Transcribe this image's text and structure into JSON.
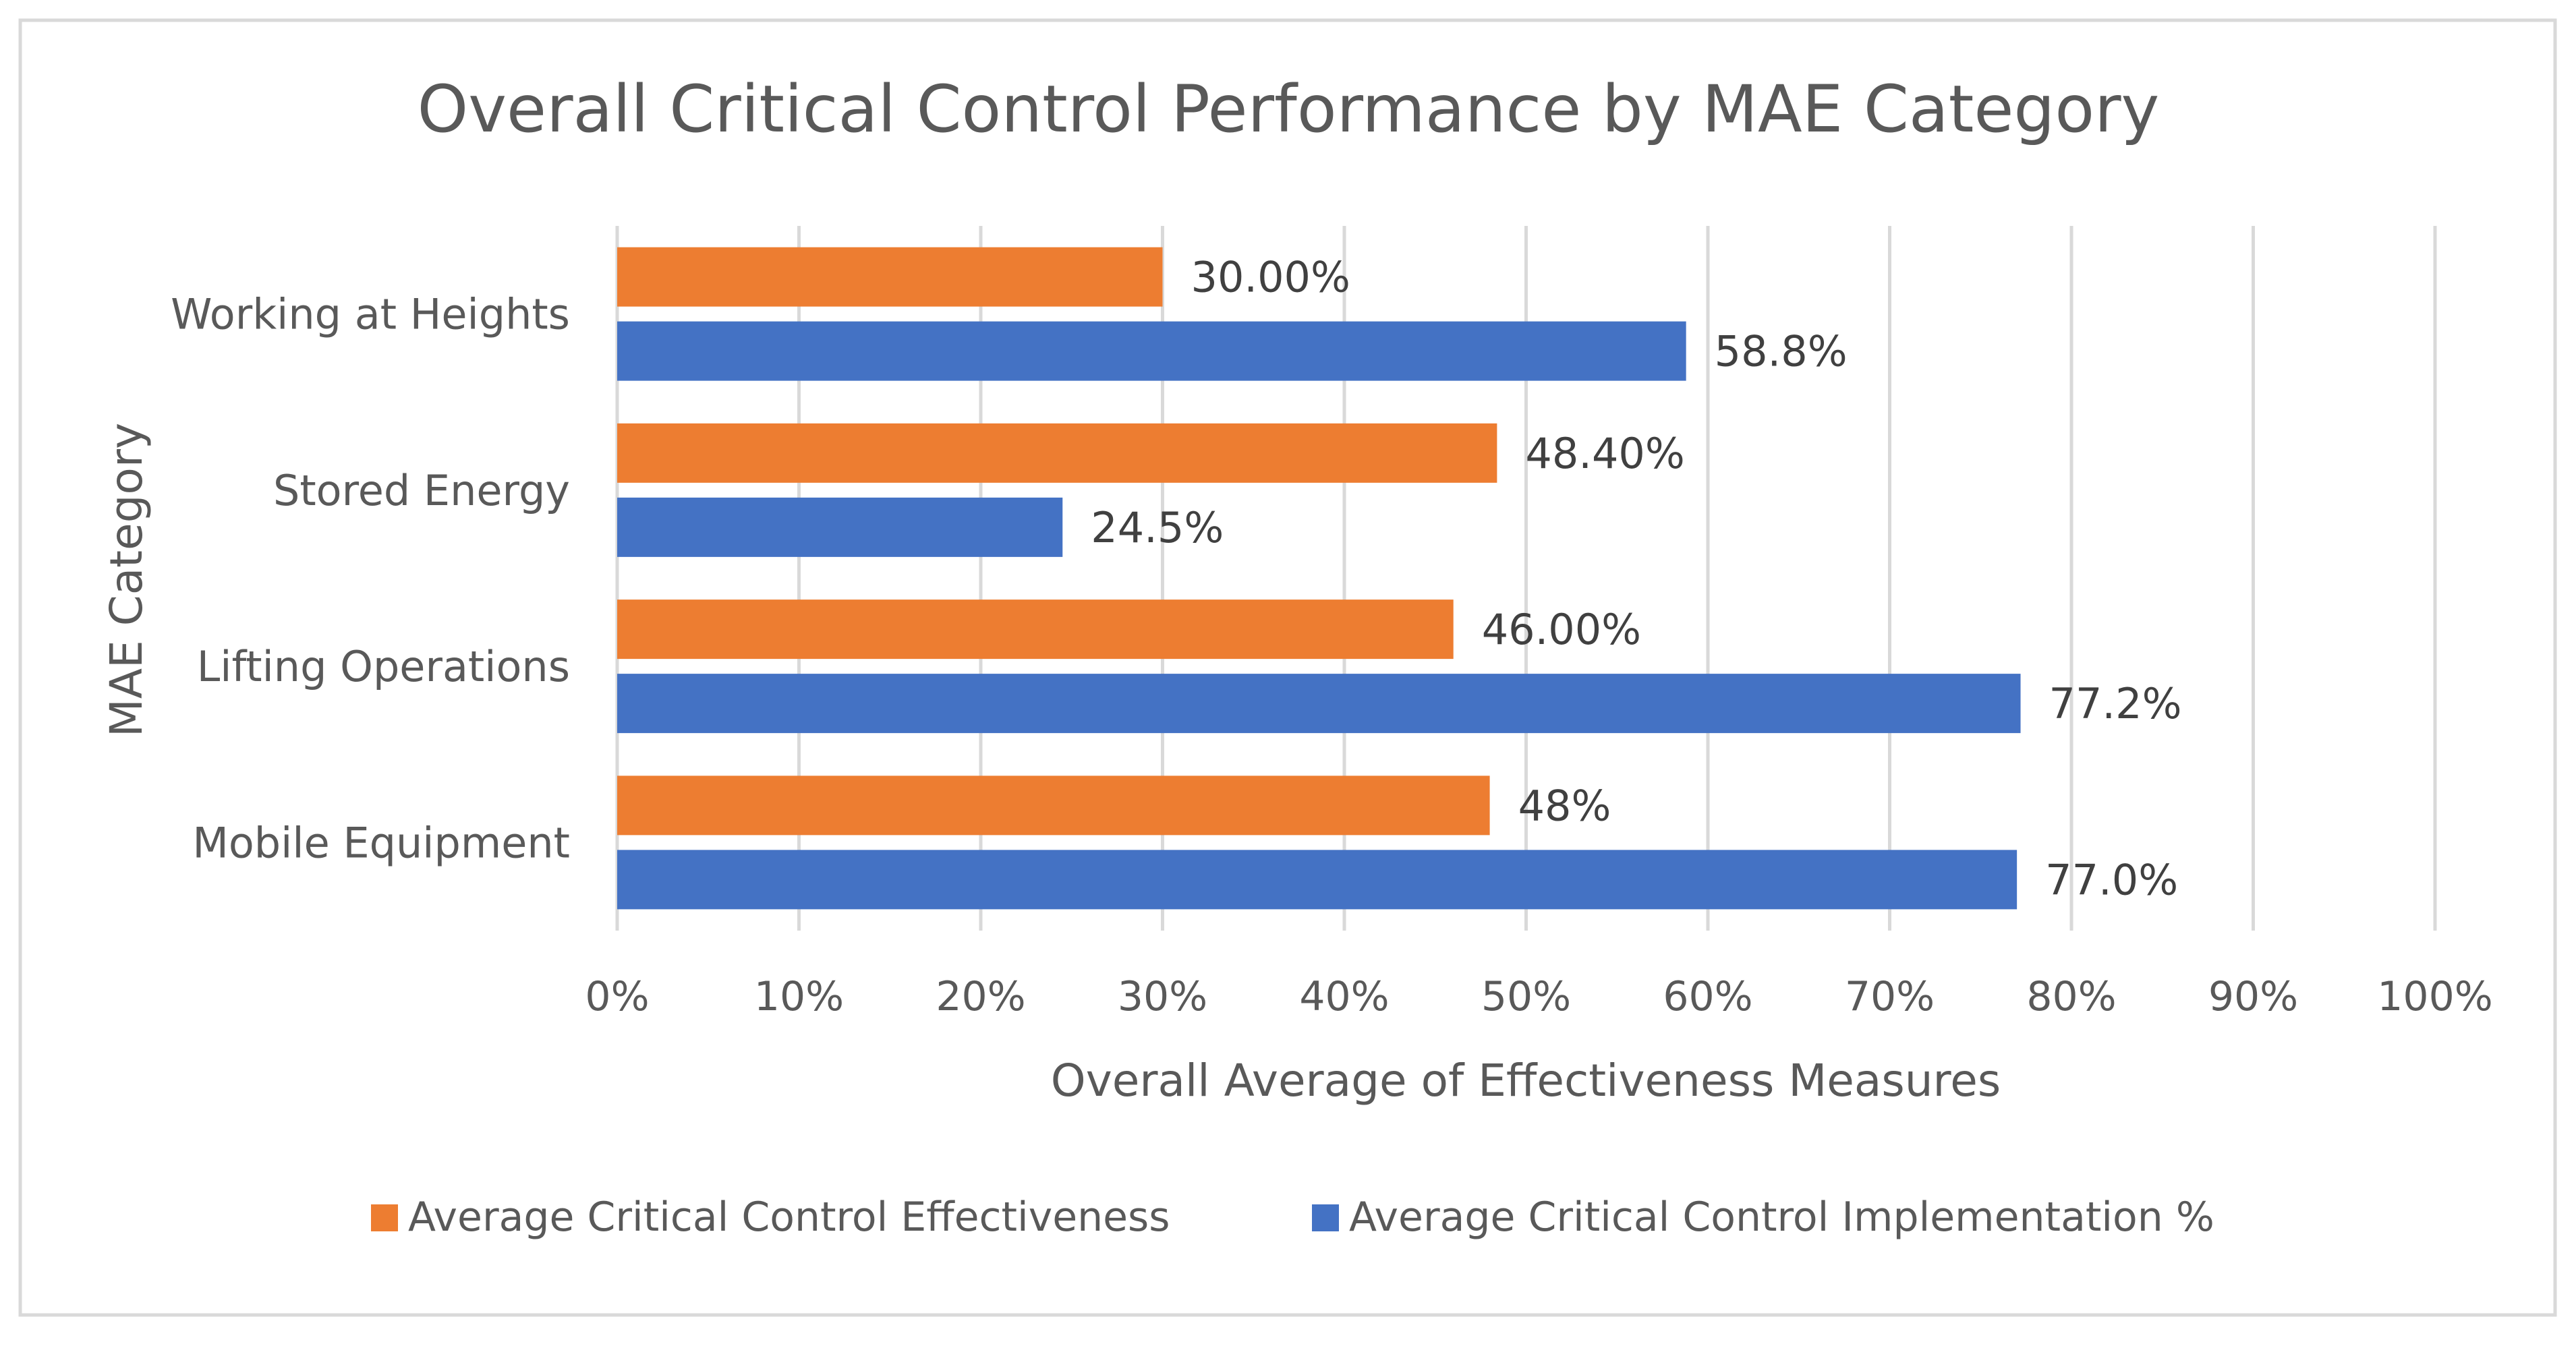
{
  "chart_data": {
    "type": "bar",
    "orientation": "horizontal",
    "title": "Overall Critical Control Performance by MAE Category",
    "xlabel": "Overall Average of Effectiveness Measures",
    "ylabel": "MAE Category",
    "xlim": [
      0,
      100
    ],
    "grid": true,
    "legend_position": "bottom",
    "categories": [
      "Working at Heights",
      "Stored Energy",
      "Lifting Operations",
      "Mobile Equipment"
    ],
    "x_ticks": [
      "0%",
      "10%",
      "20%",
      "30%",
      "40%",
      "50%",
      "60%",
      "70%",
      "80%",
      "90%",
      "100%"
    ],
    "series": [
      {
        "name": "Average Critical Control Effectiveness",
        "color": "#ED7D31",
        "values": [
          30.0,
          48.4,
          46.0,
          48.0
        ],
        "labels": [
          "30.00%",
          "48.40%",
          "46.00%",
          "48%"
        ]
      },
      {
        "name": "Average Critical Control Implementation %",
        "color": "#4472C4",
        "values": [
          58.8,
          24.5,
          77.2,
          77.0
        ],
        "labels": [
          "58.8%",
          "24.5%",
          "77.2%",
          "77.0%"
        ]
      }
    ]
  }
}
